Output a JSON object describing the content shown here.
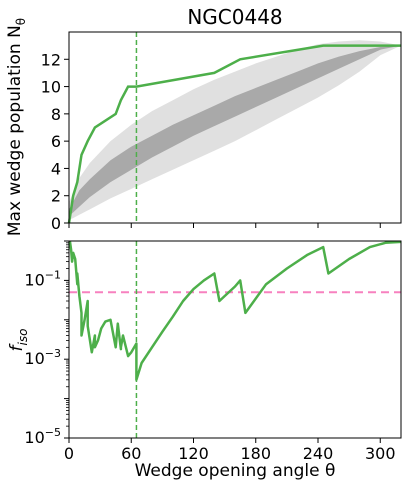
{
  "chart_data": [
    {
      "type": "line",
      "title": "NGC0448",
      "ylabel": "Max wedge population N_θ",
      "xlim": [
        0,
        320
      ],
      "ylim": [
        0,
        14
      ],
      "yticks": [
        0,
        2,
        4,
        6,
        8,
        10,
        12
      ],
      "grid": false,
      "series": [
        {
          "color": "#4daf4a",
          "x": [
            0,
            2,
            2,
            4,
            4,
            8,
            8,
            12,
            12,
            18,
            18,
            25,
            25,
            45,
            45,
            50,
            50,
            57,
            57,
            65,
            65,
            140,
            140,
            165,
            165,
            245,
            245,
            320
          ],
          "y": [
            0,
            1,
            1,
            2,
            2,
            3,
            3,
            5,
            5,
            6,
            6,
            7,
            7,
            8,
            8,
            9,
            9,
            10,
            10,
            10,
            10,
            11,
            11,
            12,
            12,
            13,
            13,
            13
          ]
        }
      ],
      "bands": [
        {
          "color": "#e0e0e0",
          "x": [
            0,
            10,
            20,
            40,
            60,
            80,
            100,
            120,
            140,
            160,
            180,
            200,
            220,
            240,
            260,
            280,
            300,
            320
          ],
          "low": [
            0.2,
            0.6,
            1.0,
            1.8,
            2.5,
            3.2,
            3.9,
            4.6,
            5.3,
            6.0,
            6.8,
            7.6,
            8.4,
            9.2,
            10.1,
            11.1,
            12.3,
            13.0
          ],
          "high": [
            1.5,
            3.3,
            4.4,
            6.0,
            7.2,
            8.2,
            9.0,
            9.8,
            10.5,
            11.1,
            11.7,
            12.2,
            12.7,
            13.1,
            13.3,
            13.4,
            13.3,
            13.0
          ]
        },
        {
          "color": "#a9a9a9",
          "x": [
            0,
            10,
            20,
            40,
            60,
            80,
            100,
            120,
            140,
            160,
            180,
            200,
            220,
            240,
            260,
            280,
            300,
            320
          ],
          "low": [
            0.5,
            1.2,
            1.9,
            3.0,
            3.9,
            4.8,
            5.6,
            6.4,
            7.1,
            7.8,
            8.5,
            9.2,
            9.9,
            10.6,
            11.3,
            12.0,
            12.7,
            13.0
          ],
          "high": [
            1.0,
            2.4,
            3.2,
            4.6,
            5.6,
            6.4,
            7.2,
            7.9,
            8.6,
            9.3,
            9.9,
            10.5,
            11.1,
            11.7,
            12.2,
            12.6,
            12.9,
            13.0
          ]
        }
      ],
      "vline": {
        "x": 65,
        "color": "#4daf4a",
        "style": "dashed"
      }
    },
    {
      "type": "line",
      "ylabel": "f_iso",
      "xlabel": "Wedge opening angle θ",
      "xlim": [
        0,
        320
      ],
      "xticks": [
        0,
        60,
        120,
        180,
        240,
        300
      ],
      "ylim_log10": [
        -5,
        0
      ],
      "yscale": "log",
      "yticks_labels": [
        "10^-5",
        "10^-3",
        "10^-1"
      ],
      "grid": false,
      "series": [
        {
          "color": "#4daf4a",
          "x": [
            0,
            1,
            2,
            3,
            4,
            6,
            8,
            8,
            10,
            12,
            12,
            15,
            18,
            18,
            22,
            25,
            25,
            28,
            31,
            35,
            40,
            45,
            45,
            47,
            50,
            50,
            52,
            57,
            57,
            60,
            65,
            65,
            70,
            80,
            90,
            100,
            110,
            120,
            130,
            140,
            140,
            145,
            150,
            160,
            165,
            165,
            170,
            190,
            210,
            230,
            245,
            245,
            250,
            270,
            290,
            305,
            320
          ],
          "y": [
            0.85,
            0.95,
            0.6,
            0.3,
            0.5,
            0.35,
            0.08,
            0.15,
            0.04,
            0.015,
            0.004,
            0.01,
            0.03,
            0.007,
            0.0015,
            0.004,
            0.002,
            0.003,
            0.006,
            0.009,
            0.01,
            0.002,
            0.002,
            0.008,
            0.0018,
            0.002,
            0.004,
            0.0012,
            0.0012,
            0.0015,
            0.0025,
            0.0003,
            0.0008,
            0.002,
            0.005,
            0.012,
            0.03,
            0.06,
            0.1,
            0.15,
            0.15,
            0.03,
            0.04,
            0.07,
            0.1,
            0.1,
            0.015,
            0.08,
            0.2,
            0.45,
            0.7,
            0.7,
            0.15,
            0.35,
            0.7,
            0.9,
            0.95
          ]
        }
      ],
      "hline": {
        "y": 0.05,
        "color": "#f781bf",
        "style": "dashed"
      },
      "vline": {
        "x": 65,
        "color": "#4daf4a",
        "style": "dashed"
      }
    }
  ]
}
